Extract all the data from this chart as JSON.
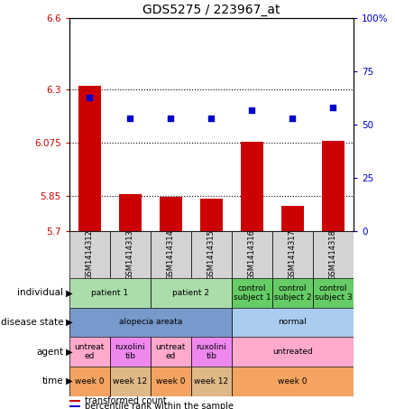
{
  "title": "GDS5275 / 223967_at",
  "samples": [
    "GSM1414312",
    "GSM1414313",
    "GSM1414314",
    "GSM1414315",
    "GSM1414316",
    "GSM1414317",
    "GSM1414318"
  ],
  "bar_values": [
    6.315,
    5.857,
    5.845,
    5.838,
    6.079,
    5.805,
    6.082
  ],
  "bar_base": 5.7,
  "percentile_values": [
    63,
    53,
    53,
    53,
    57,
    53,
    58
  ],
  "ylim_left": [
    5.7,
    6.6
  ],
  "ylim_right": [
    0,
    100
  ],
  "yticks_left": [
    5.7,
    5.85,
    6.075,
    6.3,
    6.6
  ],
  "yticks_right": [
    0,
    25,
    50,
    75,
    100
  ],
  "ytick_labels_left": [
    "5.7",
    "5.85",
    "6.075",
    "6.3",
    "6.6"
  ],
  "ytick_labels_right": [
    "0",
    "25",
    "50",
    "75",
    "100%"
  ],
  "hlines": [
    5.85,
    6.075,
    6.3
  ],
  "bar_color": "#cc0000",
  "dot_color": "#0000cc",
  "bar_width": 0.55,
  "sample_box_color": "#d3d3d3",
  "row_labels": [
    "individual",
    "disease state",
    "agent",
    "time"
  ],
  "individual_spans": [
    {
      "label": "patient 1",
      "cols": [
        0,
        1
      ],
      "color": "#aaddaa"
    },
    {
      "label": "patient 2",
      "cols": [
        2,
        3
      ],
      "color": "#aaddaa"
    },
    {
      "label": "control\nsubject 1",
      "cols": [
        4,
        4
      ],
      "color": "#66cc66"
    },
    {
      "label": "control\nsubject 2",
      "cols": [
        5,
        5
      ],
      "color": "#66cc66"
    },
    {
      "label": "control\nsubject 3",
      "cols": [
        6,
        6
      ],
      "color": "#66cc66"
    }
  ],
  "disease_spans": [
    {
      "label": "alopecia areata",
      "cols": [
        0,
        3
      ],
      "color": "#7799cc"
    },
    {
      "label": "normal",
      "cols": [
        4,
        6
      ],
      "color": "#aaccee"
    }
  ],
  "agent_spans": [
    {
      "label": "untreat\ned",
      "cols": [
        0,
        0
      ],
      "color": "#ffaacc"
    },
    {
      "label": "ruxolini\ntib",
      "cols": [
        1,
        1
      ],
      "color": "#ee88ee"
    },
    {
      "label": "untreat\ned",
      "cols": [
        2,
        2
      ],
      "color": "#ffaacc"
    },
    {
      "label": "ruxolini\ntib",
      "cols": [
        3,
        3
      ],
      "color": "#ee88ee"
    },
    {
      "label": "untreated",
      "cols": [
        4,
        6
      ],
      "color": "#ffaacc"
    }
  ],
  "time_spans": [
    {
      "label": "week 0",
      "cols": [
        0,
        0
      ],
      "color": "#f4a460"
    },
    {
      "label": "week 12",
      "cols": [
        1,
        1
      ],
      "color": "#deb887"
    },
    {
      "label": "week 0",
      "cols": [
        2,
        2
      ],
      "color": "#f4a460"
    },
    {
      "label": "week 12",
      "cols": [
        3,
        3
      ],
      "color": "#deb887"
    },
    {
      "label": "week 0",
      "cols": [
        4,
        6
      ],
      "color": "#f4a460"
    }
  ],
  "legend_items": [
    {
      "label": "transformed count",
      "color": "#cc0000"
    },
    {
      "label": "percentile rank within the sample",
      "color": "#0000cc"
    }
  ],
  "left_tick_color": "#cc0000",
  "right_tick_color": "#0000cc"
}
